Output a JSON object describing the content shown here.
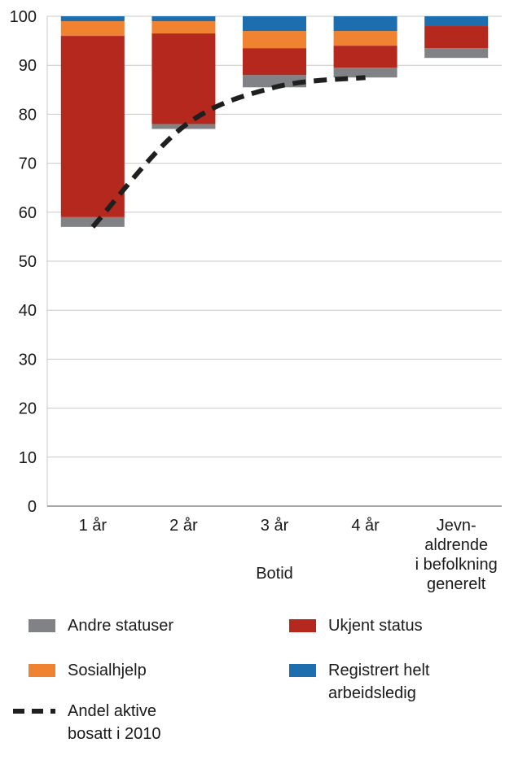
{
  "chart_data": {
    "type": "bar",
    "subtype": "stacked-bar-with-dashed-line",
    "title": "",
    "categories": [
      "1 år",
      "2 år",
      "3 år",
      "4 år",
      "Jevn-\naldrende\ni befolkning\ngenerelt"
    ],
    "xlabel": "Botid",
    "ylabel": "",
    "ylim": [
      0,
      100
    ],
    "yticks": [
      0,
      10,
      20,
      30,
      40,
      50,
      60,
      70,
      80,
      90,
      100
    ],
    "grid": true,
    "grid_color": "#c9c9c9",
    "axis_color": "#8a8a8a",
    "stack_base": [
      57,
      77,
      85.5,
      87.5,
      91.5
    ],
    "series": [
      {
        "name": "Andre statuser",
        "color": "#808285",
        "values": [
          2,
          1,
          2.5,
          2,
          2
        ]
      },
      {
        "name": "Ukjent status",
        "color": "#b5281e",
        "values": [
          37,
          18.5,
          5.5,
          4.5,
          4.5
        ]
      },
      {
        "name": "Sosialhjelp",
        "color": "#ef8331",
        "values": [
          3,
          2.5,
          3.5,
          3,
          0
        ]
      },
      {
        "name": "Registrert helt arbeidsledig",
        "color": "#1c6eae",
        "values": [
          1,
          1,
          3,
          3,
          2
        ]
      }
    ],
    "line_series": {
      "name": "Andel aktive bosatt i 2010",
      "color": "#1f1f1f",
      "style": "dashed",
      "values": [
        57,
        77.5,
        85.5,
        87.5,
        null
      ]
    },
    "legend_position": "bottom"
  },
  "legend": {
    "items": [
      {
        "label": "Andre statuser",
        "type": "swatch",
        "color": "#808285"
      },
      {
        "label": "Ukjent status",
        "type": "swatch",
        "color": "#b5281e"
      },
      {
        "label": "Sosialhjelp",
        "type": "swatch",
        "color": "#ef8331"
      },
      {
        "label": "Registrert helt\narbeidsledig",
        "type": "swatch",
        "color": "#1c6eae"
      },
      {
        "label": "Andel aktive\nbosatt i 2010",
        "type": "dashed-line",
        "color": "#1f1f1f"
      }
    ]
  }
}
